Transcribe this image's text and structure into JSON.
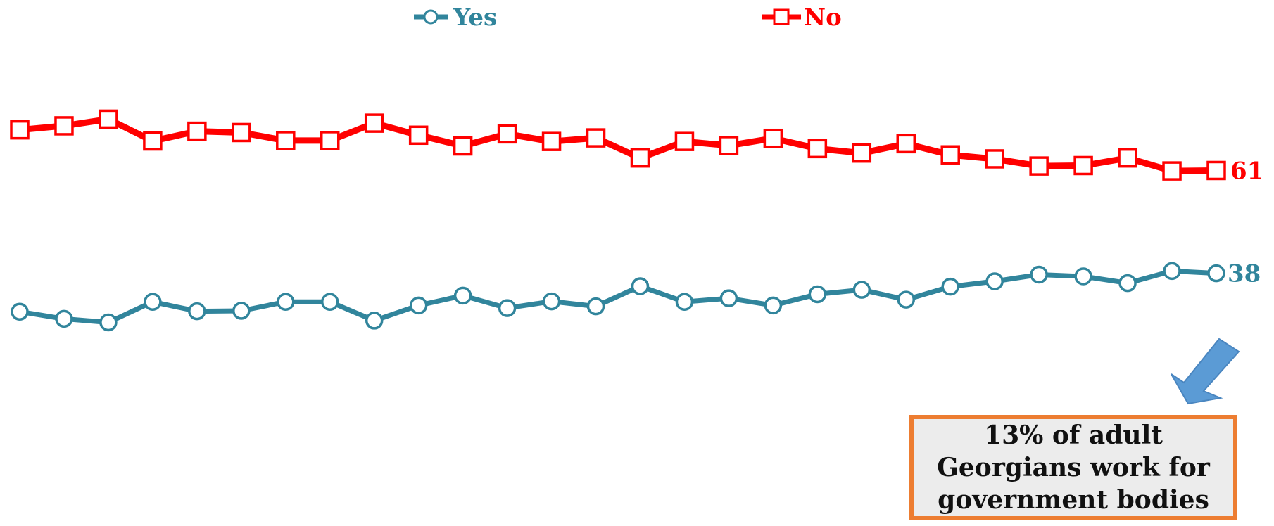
{
  "chart_data": {
    "type": "line",
    "x": [
      1,
      2,
      3,
      4,
      5,
      6,
      7,
      8,
      9,
      10,
      11,
      12,
      13,
      14,
      15,
      16,
      17,
      18,
      19,
      20,
      21,
      22,
      23,
      24,
      25,
      26,
      27,
      28
    ],
    "series": [
      {
        "name": "Yes",
        "color": "#31859c",
        "marker": "circle",
        "values": [
          29.4,
          27.8,
          27.0,
          31.6,
          29.5,
          29.6,
          31.6,
          31.6,
          27.4,
          30.8,
          33.0,
          30.2,
          31.7,
          30.6,
          35.1,
          31.6,
          32.4,
          30.8,
          33.3,
          34.3,
          32.1,
          35.0,
          36.2,
          37.7,
          37.3,
          35.8,
          38.5,
          38
        ]
      },
      {
        "name": "No",
        "color": "#ff0000",
        "marker": "square",
        "values": [
          70.1,
          71.0,
          72.5,
          67.6,
          69.8,
          69.5,
          67.7,
          67.7,
          71.6,
          68.9,
          66.5,
          69.2,
          67.5,
          68.3,
          63.8,
          67.5,
          66.6,
          68.2,
          65.9,
          64.9,
          67.0,
          64.5,
          63.6,
          62.0,
          62.1,
          63.8,
          60.9,
          61
        ]
      }
    ],
    "end_labels": [
      "38",
      "61"
    ],
    "ylim": [
      0,
      85
    ],
    "grid": false,
    "legend_position": "top",
    "annotation": "13% of adult\nGeorgians work for\ngovernment bodies",
    "annotation_border_color": "#ed7d31",
    "arrow_color": "#5b9bd5"
  }
}
